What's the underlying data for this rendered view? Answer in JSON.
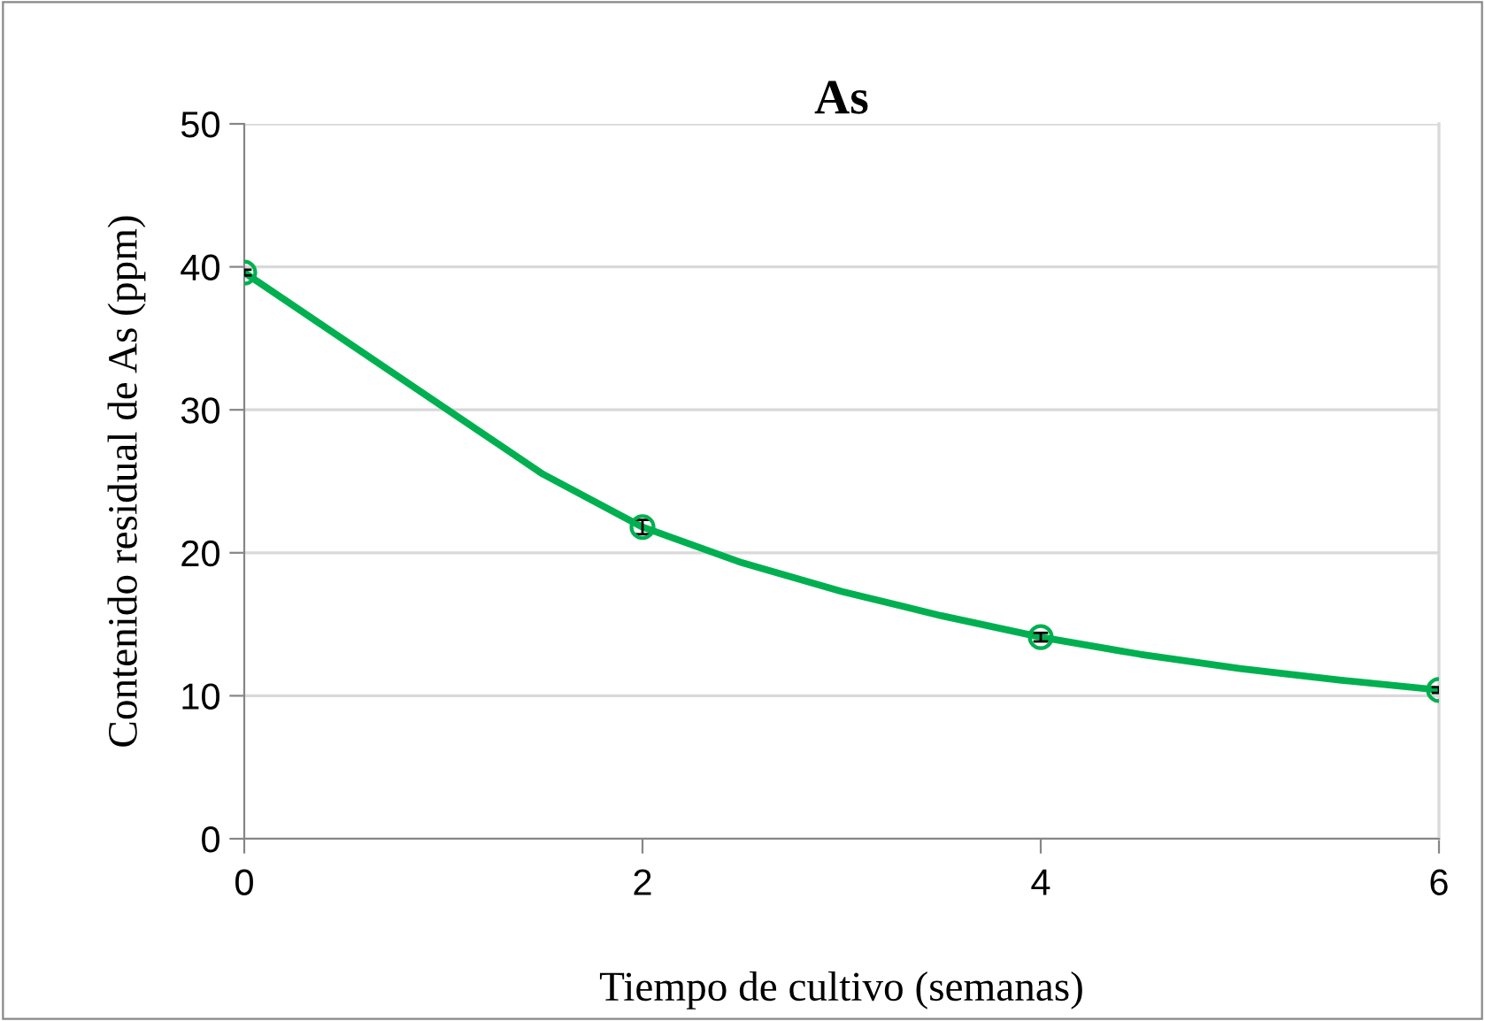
{
  "chart_data": {
    "type": "line",
    "title": "As",
    "xlabel": "Tiempo de cultivo (semanas)",
    "ylabel": "Contenido residual de As (ppm)",
    "x": [
      0,
      2,
      4,
      6
    ],
    "series": [
      {
        "marker": "none",
        "color": "#00b050",
        "x": [
          0,
          0.5,
          1,
          1.5,
          2,
          2.5,
          3,
          3.5,
          4,
          4.5,
          5,
          5.5,
          6
        ],
        "values": [
          39.6,
          34.9,
          30.2,
          25.5,
          21.8,
          19.3,
          17.3,
          15.6,
          14.1,
          12.9,
          11.9,
          11.1,
          10.4
        ]
      },
      {
        "type": "scatter",
        "marker": "circle",
        "color": "#00b050",
        "values": [
          39.6,
          21.8,
          14.1,
          10.4
        ],
        "errors": [
          0.2,
          0.5,
          0.3,
          0.2
        ]
      }
    ],
    "xlim": [
      0,
      6
    ],
    "xticks": [
      0,
      2,
      4,
      6
    ],
    "ylim": [
      0,
      50
    ],
    "yticks": [
      0,
      10,
      20,
      30,
      40,
      50
    ],
    "grid": "y",
    "line_style": "solid",
    "legend": false
  }
}
